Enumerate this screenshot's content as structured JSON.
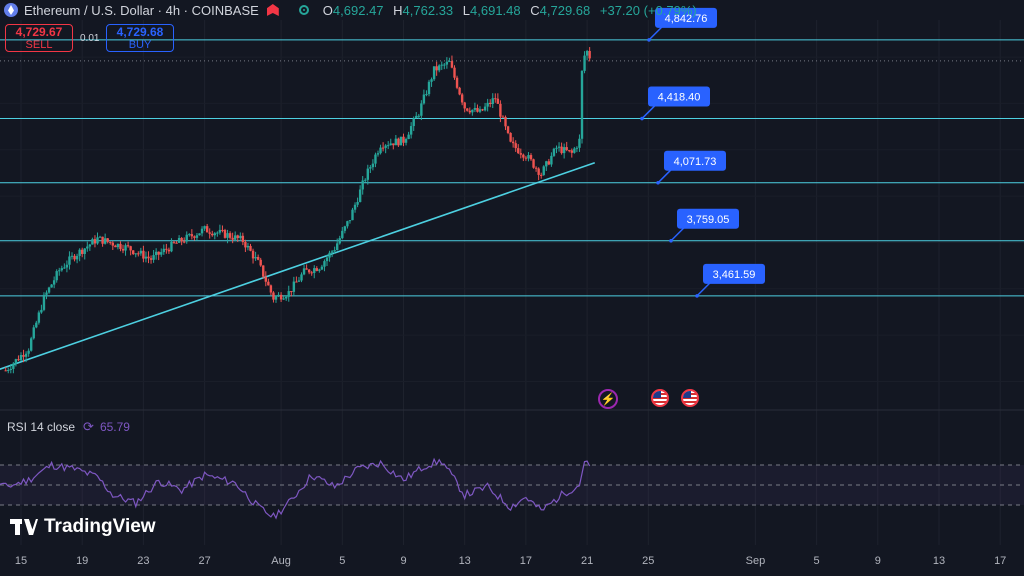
{
  "header": {
    "title": "Ethereum / U.S. Dollar · 4h · COINBASE",
    "ohlc": {
      "o_label": "O",
      "o": "4,692.47",
      "h_label": "H",
      "h": "4,762.33",
      "l_label": "L",
      "l": "4,691.48",
      "c_label": "C",
      "c": "4,729.68",
      "change": "+37.20 (+0.79%)"
    }
  },
  "trade": {
    "sell_price": "4,729.67",
    "sell_label": "SELL",
    "spread": "0.01",
    "buy_price": "4,729.68",
    "buy_label": "BUY"
  },
  "rsi": {
    "label": "RSI 14 close",
    "value": "65.79"
  },
  "logo": {
    "text": "TradingView"
  },
  "icons": {
    "header": [
      "ethereum-icon",
      "coinbase-icon",
      "status-dot-icon"
    ],
    "events": [
      "lightning-icon",
      "us-flag-icon",
      "us-flag-icon"
    ]
  },
  "colors": {
    "up": "#26a69a",
    "down": "#ef5350",
    "line": "#4dd0e1",
    "rsi": "#7e57c2",
    "label": "#2962ff"
  },
  "chart_data": {
    "type": "candlestick",
    "symbol": "Ethereum / U.S. Dollar",
    "interval": "4h",
    "exchange": "COINBASE",
    "price_range": [
      2900,
      4950
    ],
    "x_ticks": [
      "15",
      "19",
      "23",
      "27",
      "Aug",
      "5",
      "9",
      "13",
      "17",
      "21",
      "25",
      "Sep",
      "5",
      "9",
      "13",
      "17"
    ],
    "anchors": [
      {
        "day": 14,
        "price": 3060
      },
      {
        "day": 15.5,
        "price": 3180
      },
      {
        "day": 16.5,
        "price": 3450
      },
      {
        "day": 17.5,
        "price": 3600
      },
      {
        "day": 18.5,
        "price": 3680
      },
      {
        "day": 20,
        "price": 3770
      },
      {
        "day": 22,
        "price": 3720
      },
      {
        "day": 23.5,
        "price": 3660
      },
      {
        "day": 25,
        "price": 3740
      },
      {
        "day": 27,
        "price": 3820
      },
      {
        "day": 28.5,
        "price": 3790
      },
      {
        "day": 29.5,
        "price": 3760
      },
      {
        "day": 30.5,
        "price": 3640
      },
      {
        "day": 31.5,
        "price": 3450
      },
      {
        "day": 32.5,
        "price": 3480
      },
      {
        "day": 33.5,
        "price": 3590
      },
      {
        "day": 34.5,
        "price": 3620
      },
      {
        "day": 35.5,
        "price": 3720
      },
      {
        "day": 36.5,
        "price": 3880
      },
      {
        "day": 37.5,
        "price": 4100
      },
      {
        "day": 38.5,
        "price": 4280
      },
      {
        "day": 40,
        "price": 4300
      },
      {
        "day": 41,
        "price": 4450
      },
      {
        "day": 42,
        "price": 4680
      },
      {
        "day": 43,
        "price": 4720
      },
      {
        "day": 44,
        "price": 4480
      },
      {
        "day": 45,
        "price": 4450
      },
      {
        "day": 46,
        "price": 4530
      },
      {
        "day": 47,
        "price": 4280
      },
      {
        "day": 48,
        "price": 4220
      },
      {
        "day": 49,
        "price": 4120
      },
      {
        "day": 50,
        "price": 4260
      },
      {
        "day": 51,
        "price": 4230
      },
      {
        "day": 51.5,
        "price": 4300
      },
      {
        "day": 51.7,
        "price": 4740
      },
      {
        "day": 52,
        "price": 4780
      },
      {
        "day": 52.3,
        "price": 4730
      }
    ],
    "horizontal_levels": [
      {
        "label": "4,842.76",
        "price": 4842.76
      },
      {
        "label": "4,418.40",
        "price": 4418.4
      },
      {
        "label": "4,071.73",
        "price": 4071.73
      },
      {
        "label": "3,759.05",
        "price": 3759.05
      },
      {
        "label": "3,461.59",
        "price": 3461.59
      }
    ],
    "trendline": [
      {
        "day": 12,
        "price": 3020
      },
      {
        "day": 52.5,
        "price": 4180
      }
    ],
    "rsi": {
      "length": 14,
      "source": "close",
      "last": 65.79,
      "bands": [
        70,
        50,
        30
      ],
      "anchors": [
        {
          "day": 12,
          "value": 60
        },
        {
          "day": 14,
          "value": 48
        },
        {
          "day": 15.5,
          "value": 55
        },
        {
          "day": 17,
          "value": 70
        },
        {
          "day": 18.5,
          "value": 66
        },
        {
          "day": 20,
          "value": 58
        },
        {
          "day": 21,
          "value": 40
        },
        {
          "day": 22.5,
          "value": 32
        },
        {
          "day": 24,
          "value": 54
        },
        {
          "day": 25.5,
          "value": 45
        },
        {
          "day": 27,
          "value": 60
        },
        {
          "day": 29,
          "value": 52
        },
        {
          "day": 30.5,
          "value": 28
        },
        {
          "day": 31.5,
          "value": 18
        },
        {
          "day": 32.5,
          "value": 32
        },
        {
          "day": 34,
          "value": 60
        },
        {
          "day": 35.5,
          "value": 48
        },
        {
          "day": 37,
          "value": 66
        },
        {
          "day": 38.5,
          "value": 72
        },
        {
          "day": 40,
          "value": 55
        },
        {
          "day": 41.5,
          "value": 70
        },
        {
          "day": 42.5,
          "value": 74
        },
        {
          "day": 44,
          "value": 40
        },
        {
          "day": 45.5,
          "value": 48
        },
        {
          "day": 47,
          "value": 28
        },
        {
          "day": 48,
          "value": 38
        },
        {
          "day": 49,
          "value": 24
        },
        {
          "day": 50.5,
          "value": 42
        },
        {
          "day": 51.5,
          "value": 50
        },
        {
          "day": 51.8,
          "value": 74
        },
        {
          "day": 52.3,
          "value": 66
        }
      ]
    }
  }
}
